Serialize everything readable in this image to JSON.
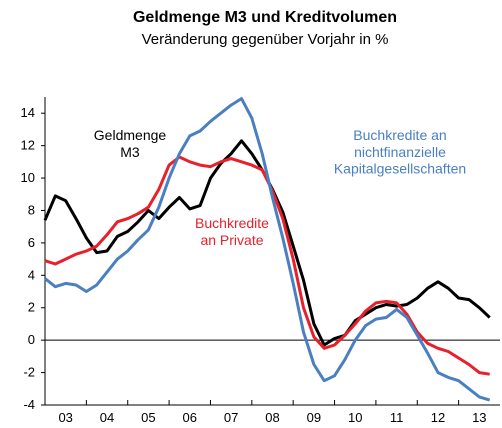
{
  "chart_data": {
    "type": "line",
    "title": "Geldmenge M3 und Kreditvolumen",
    "subtitle": "Veränderung gegenüber Vorjahr in %",
    "x": [
      3.0,
      3.25,
      3.5,
      3.75,
      4.0,
      4.25,
      4.5,
      4.75,
      5.0,
      5.25,
      5.5,
      5.75,
      6.0,
      6.25,
      6.5,
      6.75,
      7.0,
      7.25,
      7.5,
      7.75,
      8.0,
      8.25,
      8.5,
      8.75,
      9.0,
      9.25,
      9.5,
      9.75,
      10.0,
      10.25,
      10.5,
      10.75,
      11.0,
      11.25,
      11.5,
      11.75,
      12.0,
      12.25,
      12.5,
      12.75,
      13.0,
      13.25,
      13.5,
      13.75
    ],
    "series": [
      {
        "name": "Geldmenge\nM3",
        "color": "#000000",
        "values": [
          7.4,
          8.9,
          8.6,
          7.5,
          6.3,
          5.4,
          5.5,
          6.4,
          6.7,
          7.3,
          8.0,
          7.5,
          8.2,
          8.8,
          8.1,
          8.3,
          10.0,
          10.9,
          11.5,
          12.3,
          11.5,
          10.5,
          9.3,
          7.9,
          5.8,
          3.7,
          1.0,
          -0.3,
          0.1,
          0.3,
          1.2,
          1.6,
          2.0,
          2.2,
          2.1,
          2.2,
          2.6,
          3.2,
          3.6,
          3.2,
          2.6,
          2.5,
          2.0,
          1.4
        ]
      },
      {
        "name": "Buchkredite\nan Private",
        "color": "#e8202a",
        "values": [
          4.9,
          4.7,
          5.0,
          5.3,
          5.5,
          5.8,
          6.5,
          7.3,
          7.5,
          7.8,
          8.2,
          9.3,
          10.8,
          11.3,
          11.0,
          10.8,
          10.7,
          11.0,
          11.2,
          11.0,
          10.8,
          10.5,
          9.2,
          7.5,
          5.0,
          2.0,
          0.2,
          -0.5,
          -0.3,
          0.3,
          1.0,
          1.8,
          2.3,
          2.4,
          2.3,
          1.6,
          0.5,
          -0.2,
          -0.5,
          -0.7,
          -1.1,
          -1.5,
          -2.0,
          -2.1
        ]
      },
      {
        "name": "Buchkredite an\nnichtfinanzielle\nKapitalgesellschaften",
        "color": "#4a7fc1",
        "values": [
          3.8,
          3.3,
          3.5,
          3.4,
          3.0,
          3.4,
          4.2,
          5.0,
          5.5,
          6.2,
          6.8,
          8.2,
          10.0,
          11.5,
          12.6,
          12.9,
          13.5,
          14.0,
          14.5,
          14.9,
          13.7,
          11.5,
          8.8,
          6.3,
          3.5,
          0.5,
          -1.5,
          -2.5,
          -2.2,
          -1.2,
          0.0,
          0.9,
          1.3,
          1.4,
          1.9,
          1.4,
          0.3,
          -0.8,
          -2.0,
          -2.3,
          -2.5,
          -3.0,
          -3.5,
          -3.7
        ]
      }
    ],
    "xlim": [
      3,
      14
    ],
    "xticks": [
      {
        "value": 3,
        "label": "03"
      },
      {
        "value": 4,
        "label": "04"
      },
      {
        "value": 5,
        "label": "05"
      },
      {
        "value": 6,
        "label": "06"
      },
      {
        "value": 7,
        "label": "07"
      },
      {
        "value": 8,
        "label": "08"
      },
      {
        "value": 9,
        "label": "09"
      },
      {
        "value": 10,
        "label": "10"
      },
      {
        "value": 11,
        "label": "11"
      },
      {
        "value": 12,
        "label": "12"
      },
      {
        "value": 13,
        "label": "13"
      }
    ],
    "ylim": [
      -4,
      15
    ],
    "yticks": [
      -4,
      -2,
      0,
      2,
      4,
      6,
      8,
      10,
      12,
      14
    ]
  }
}
